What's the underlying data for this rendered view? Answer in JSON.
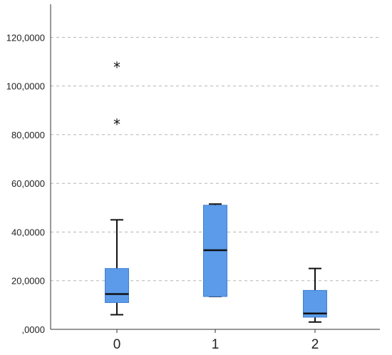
{
  "chart_data": {
    "type": "box",
    "title": "",
    "xlabel": "",
    "ylabel": "",
    "ylim": [
      0,
      133000
    ],
    "y_ticks": [
      0,
      20000,
      40000,
      60000,
      80000,
      100000,
      120000
    ],
    "y_tick_labels": [
      ",0000",
      "20,0000",
      "40,0000",
      "60,0000",
      "80,0000",
      "100,0000",
      "120,0000"
    ],
    "grid": "horizontal dashed",
    "box_color": "#5b9bea",
    "categories": [
      "0",
      "1",
      "2"
    ],
    "boxes": [
      {
        "category": "0",
        "whisker_low": 6000,
        "q1": 11000,
        "median": 14500,
        "q3": 25000,
        "whisker_high": 45000,
        "outliers": [
          84500,
          108000
        ]
      },
      {
        "category": "1",
        "whisker_low": 13500,
        "q1": 13500,
        "median": 32500,
        "q3": 51000,
        "whisker_high": 51500,
        "outliers": []
      },
      {
        "category": "2",
        "whisker_low": 3000,
        "q1": 5000,
        "median": 6500,
        "q3": 16000,
        "whisker_high": 25000,
        "outliers": []
      }
    ]
  }
}
